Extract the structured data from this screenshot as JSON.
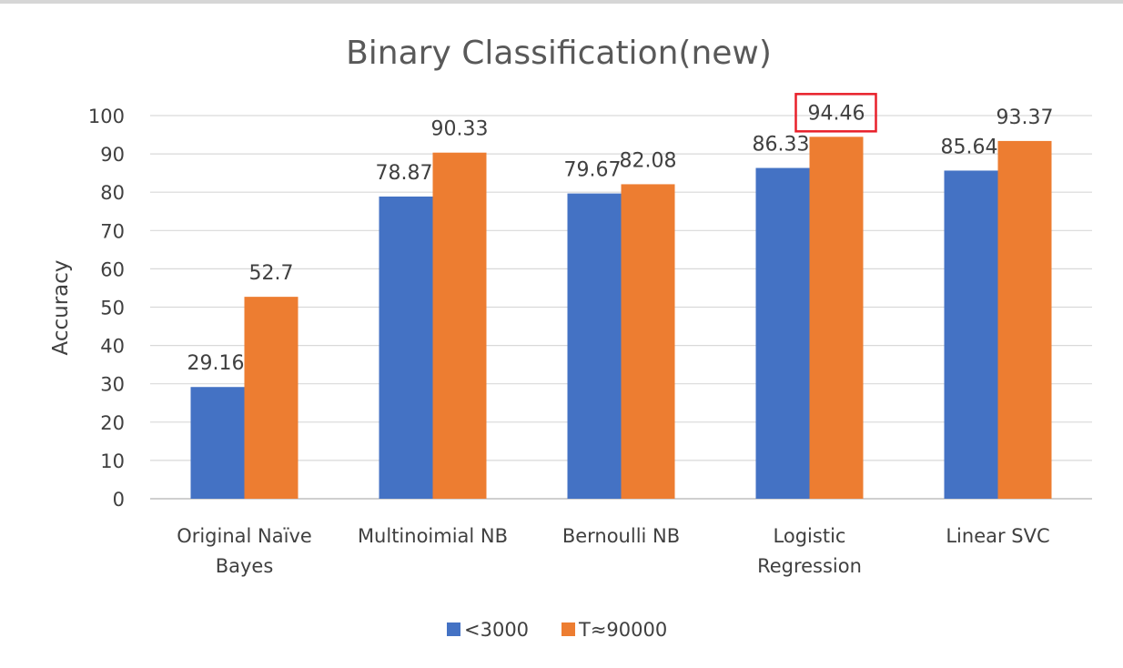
{
  "chart_data": {
    "type": "bar",
    "title": "Binary Classification(new)",
    "xlabel": "",
    "ylabel": "Accuracy",
    "ylim": [
      0,
      100
    ],
    "yticks": [
      "0",
      "10",
      "20",
      "30",
      "40",
      "50",
      "60",
      "70",
      "80",
      "90",
      "100"
    ],
    "categories": [
      [
        "Original Naïve",
        "Bayes"
      ],
      [
        "Multinoimial NB"
      ],
      [
        "Bernoulli NB"
      ],
      [
        "Logistic",
        "Regression"
      ],
      [
        "Linear SVC"
      ]
    ],
    "series": [
      {
        "name": "<3000",
        "color": "#4472c4",
        "values": [
          29.16,
          78.87,
          79.67,
          86.33,
          85.64
        ],
        "labels": [
          "29.16",
          "78.87",
          "79.67",
          "86.33",
          "85.64"
        ]
      },
      {
        "name": "T≈90000",
        "color": "#ed7d31",
        "values": [
          52.7,
          90.33,
          82.08,
          94.46,
          93.37
        ],
        "labels": [
          "52.7",
          "90.33",
          "82.08",
          "94.46",
          "93.37"
        ]
      }
    ],
    "highlight": {
      "series": 1,
      "category": 3,
      "color": "#e8202a"
    },
    "grid": true,
    "legend": "bottom"
  }
}
